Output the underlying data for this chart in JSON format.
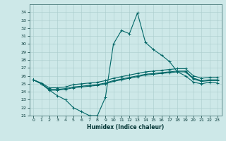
{
  "xlabel": "Humidex (Indice chaleur)",
  "background_color": "#cde8e8",
  "grid_color": "#aacccc",
  "line_color": "#006666",
  "x_values": [
    0,
    1,
    2,
    3,
    4,
    5,
    6,
    7,
    8,
    9,
    10,
    11,
    12,
    13,
    14,
    15,
    16,
    17,
    18,
    19,
    20,
    21,
    22,
    23
  ],
  "lines": [
    [
      25.5,
      25.0,
      24.2,
      23.5,
      23.0,
      22.0,
      21.5,
      21.0,
      21.0,
      23.3,
      30.0,
      31.7,
      31.3,
      33.9,
      30.2,
      29.3,
      28.6,
      27.8,
      26.5,
      26.0,
      25.2,
      25.0,
      25.2,
      25.1
    ],
    [
      25.5,
      25.0,
      24.2,
      24.2,
      24.3,
      24.5,
      24.6,
      24.7,
      24.8,
      25.0,
      25.3,
      25.5,
      25.7,
      25.9,
      26.1,
      26.2,
      26.3,
      26.4,
      26.5,
      26.5,
      25.6,
      25.3,
      25.4,
      25.4
    ],
    [
      25.5,
      25.0,
      24.3,
      24.3,
      24.4,
      24.6,
      24.7,
      24.8,
      24.9,
      25.1,
      25.4,
      25.6,
      25.8,
      26.0,
      26.2,
      26.3,
      26.4,
      26.5,
      26.6,
      26.6,
      25.7,
      25.4,
      25.5,
      25.5
    ],
    [
      25.5,
      25.1,
      24.5,
      24.5,
      24.6,
      24.9,
      25.0,
      25.1,
      25.2,
      25.4,
      25.7,
      25.9,
      26.1,
      26.3,
      26.5,
      26.6,
      26.7,
      26.8,
      26.9,
      26.9,
      26.0,
      25.7,
      25.8,
      25.8
    ]
  ],
  "ylim": [
    21,
    35
  ],
  "yticks": [
    21,
    22,
    23,
    24,
    25,
    26,
    27,
    28,
    29,
    30,
    31,
    32,
    33,
    34
  ],
  "xlim": [
    -0.5,
    23.5
  ],
  "xticks": [
    0,
    1,
    2,
    3,
    4,
    5,
    6,
    7,
    8,
    9,
    10,
    11,
    12,
    13,
    14,
    15,
    16,
    17,
    18,
    19,
    20,
    21,
    22,
    23
  ]
}
